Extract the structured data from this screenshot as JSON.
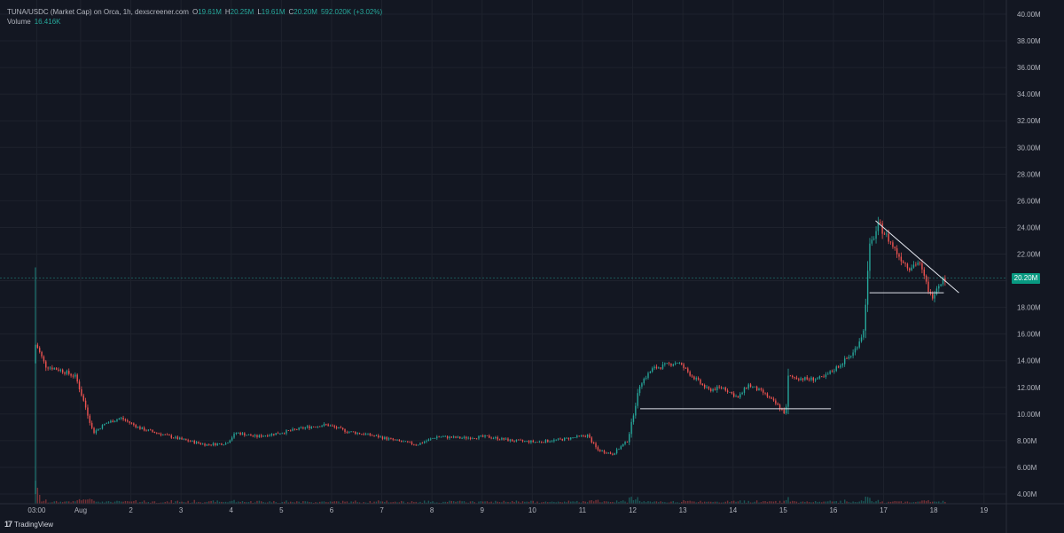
{
  "header": {
    "symbol": "TUNA/USDC (Market Cap) on Orca, 1h, dexscreener.com",
    "ohlc": [
      {
        "key": "O",
        "value": "19.61M"
      },
      {
        "key": "H",
        "value": "20.25M"
      },
      {
        "key": "L",
        "value": "19.61M"
      },
      {
        "key": "C",
        "value": "20.20M"
      }
    ],
    "change": "592.020K (+3.02%)",
    "volume_label": "Volume",
    "volume_value": "16.416K"
  },
  "branding": {
    "logo": "TradingView"
  },
  "colors": {
    "background": "#131722",
    "up": "#26a69a",
    "down": "#ef5350",
    "badge": "#089981",
    "grid": "#1e222d"
  },
  "chart_data": {
    "type": "candlestick",
    "yaxis": {
      "min": 4,
      "max": 40,
      "step": 2,
      "unit": "M",
      "ticks": [
        "4.00M",
        "6.00M",
        "8.00M",
        "10.00M",
        "12.00M",
        "14.00M",
        "16.00M",
        "18.00M",
        "20.00M",
        "22.00M",
        "24.00M",
        "26.00M",
        "28.00M",
        "30.00M",
        "32.00M",
        "34.00M",
        "36.00M",
        "38.00M",
        "40.00M"
      ]
    },
    "xaxis": {
      "ticks": [
        {
          "day": 0.125,
          "label": "03:00"
        },
        {
          "day": 1,
          "label": "Aug"
        },
        {
          "day": 2,
          "label": "2"
        },
        {
          "day": 3,
          "label": "3"
        },
        {
          "day": 4,
          "label": "4"
        },
        {
          "day": 5,
          "label": "5"
        },
        {
          "day": 6,
          "label": "6"
        },
        {
          "day": 7,
          "label": "7"
        },
        {
          "day": 8,
          "label": "8"
        },
        {
          "day": 9,
          "label": "9"
        },
        {
          "day": 10,
          "label": "10"
        },
        {
          "day": 11,
          "label": "11"
        },
        {
          "day": 12,
          "label": "12"
        },
        {
          "day": 13,
          "label": "13"
        },
        {
          "day": 14,
          "label": "14"
        },
        {
          "day": 15,
          "label": "15"
        },
        {
          "day": 16,
          "label": "16"
        },
        {
          "day": 17,
          "label": "17"
        },
        {
          "day": 18,
          "label": "18"
        },
        {
          "day": 19,
          "label": "19"
        }
      ]
    },
    "last_price": {
      "value": 20.2,
      "label": "20.20M"
    },
    "anchors": [
      [
        0.1,
        21.0
      ],
      [
        0.14,
        15.0
      ],
      [
        0.3,
        13.6
      ],
      [
        0.6,
        13.3
      ],
      [
        0.9,
        12.8
      ],
      [
        1.1,
        10.5
      ],
      [
        1.25,
        8.6
      ],
      [
        1.5,
        9.3
      ],
      [
        1.8,
        9.7
      ],
      [
        2.2,
        8.9
      ],
      [
        2.6,
        8.5
      ],
      [
        3.0,
        8.1
      ],
      [
        3.5,
        7.7
      ],
      [
        3.9,
        7.8
      ],
      [
        4.1,
        8.6
      ],
      [
        4.5,
        8.3
      ],
      [
        5.0,
        8.6
      ],
      [
        5.5,
        9.0
      ],
      [
        5.9,
        9.2
      ],
      [
        6.3,
        8.7
      ],
      [
        6.8,
        8.4
      ],
      [
        7.3,
        8.0
      ],
      [
        7.7,
        7.7
      ],
      [
        8.1,
        8.3
      ],
      [
        8.6,
        8.2
      ],
      [
        9.1,
        8.3
      ],
      [
        9.6,
        8.0
      ],
      [
        10.1,
        7.9
      ],
      [
        10.6,
        8.1
      ],
      [
        11.1,
        8.4
      ],
      [
        11.3,
        7.3
      ],
      [
        11.6,
        7.0
      ],
      [
        11.9,
        8.0
      ],
      [
        12.15,
        12.3
      ],
      [
        12.4,
        13.4
      ],
      [
        12.9,
        13.9
      ],
      [
        13.2,
        12.8
      ],
      [
        13.5,
        11.8
      ],
      [
        13.8,
        12.0
      ],
      [
        14.1,
        11.2
      ],
      [
        14.3,
        12.2
      ],
      [
        14.6,
        11.6
      ],
      [
        14.9,
        10.6
      ],
      [
        15.05,
        10.0
      ],
      [
        15.1,
        12.8
      ],
      [
        15.5,
        12.6
      ],
      [
        15.8,
        12.7
      ],
      [
        16.1,
        13.6
      ],
      [
        16.4,
        14.6
      ],
      [
        16.6,
        16.2
      ],
      [
        16.72,
        22.5
      ],
      [
        16.9,
        24.2
      ],
      [
        17.05,
        23.4
      ],
      [
        17.3,
        21.9
      ],
      [
        17.5,
        21.0
      ],
      [
        17.7,
        21.4
      ],
      [
        17.85,
        19.8
      ],
      [
        17.95,
        18.7
      ],
      [
        18.05,
        19.5
      ],
      [
        18.15,
        20.0
      ],
      [
        18.25,
        20.2
      ]
    ],
    "annotations": [
      {
        "type": "trendline",
        "from": [
          16.84,
          24.5
        ],
        "to": [
          18.5,
          19.1
        ]
      },
      {
        "type": "horizontal",
        "from": [
          16.72,
          19.1
        ],
        "to": [
          18.2,
          19.1
        ]
      },
      {
        "type": "horizontal",
        "from": [
          12.15,
          10.4
        ],
        "to": [
          15.95,
          10.4
        ]
      }
    ]
  }
}
